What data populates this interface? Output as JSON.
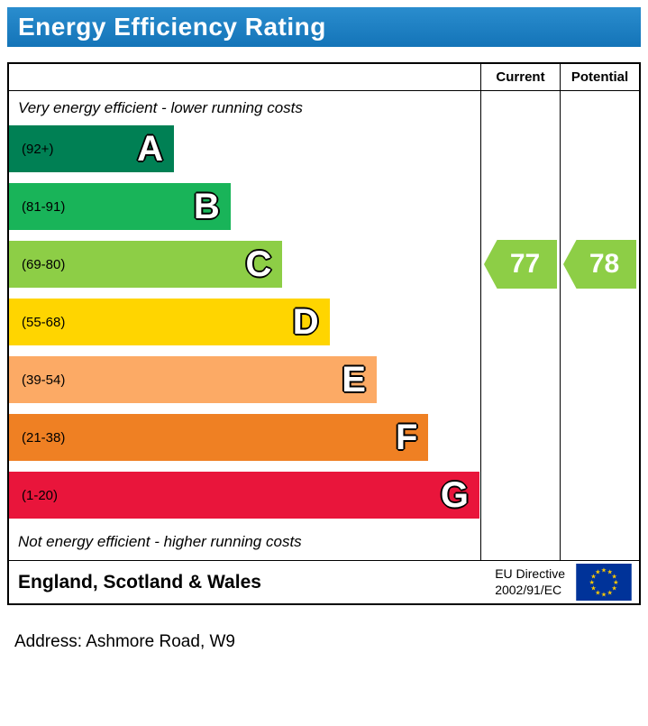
{
  "title": "Energy Efficiency Rating",
  "columns": {
    "current": "Current",
    "potential": "Potential"
  },
  "notes": {
    "top": "Very energy efficient - lower running costs",
    "bottom": "Not energy efficient - higher running costs"
  },
  "footer": {
    "region": "England, Scotland & Wales",
    "directive_line1": "EU Directive",
    "directive_line2": "2002/91/EC"
  },
  "address": "Address: Ashmore Road, W9",
  "colors": {
    "header_bg": "#1879c0",
    "flag_bg": "#003399",
    "flag_stars": "#ffcc00"
  },
  "chart_data": {
    "type": "bar",
    "title": "Energy Efficiency Rating",
    "categories": [
      "A",
      "B",
      "C",
      "D",
      "E",
      "F",
      "G"
    ],
    "range_labels": [
      "(92+)",
      "(81-91)",
      "(69-80)",
      "(55-68)",
      "(39-54)",
      "(21-38)",
      "(1-20)"
    ],
    "score_ranges": [
      [
        92,
        100
      ],
      [
        81,
        91
      ],
      [
        69,
        80
      ],
      [
        55,
        68
      ],
      [
        39,
        54
      ],
      [
        21,
        38
      ],
      [
        1,
        20
      ]
    ],
    "colors": [
      "#008054",
      "#19b459",
      "#8dce46",
      "#ffd500",
      "#fcaa65",
      "#ef8023",
      "#e9153b"
    ],
    "bar_width_pct": [
      35,
      47,
      58,
      68,
      78,
      89,
      99.8
    ],
    "current": {
      "label": "Current",
      "value": 77,
      "band": "C",
      "color": "#8dce46"
    },
    "potential": {
      "label": "Potential",
      "value": 78,
      "band": "C",
      "color": "#8dce46"
    }
  }
}
